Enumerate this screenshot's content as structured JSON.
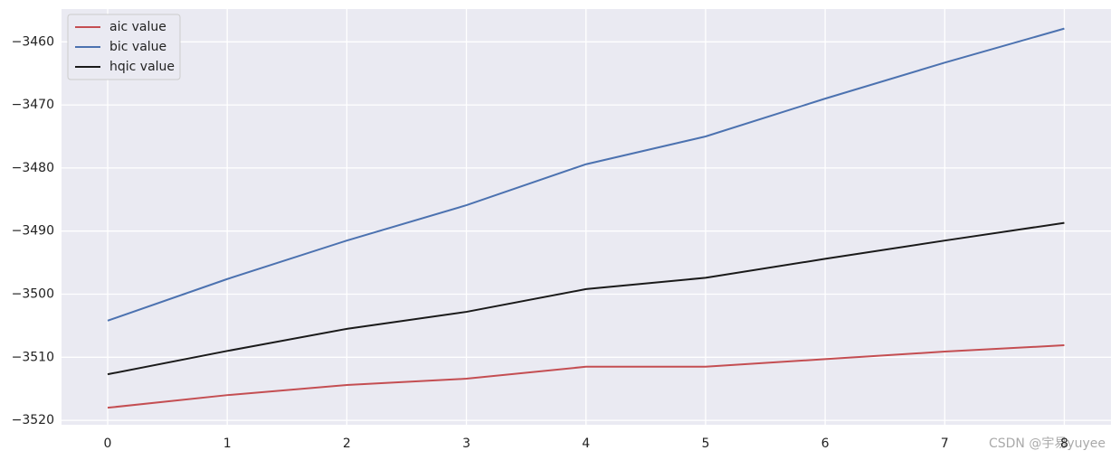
{
  "chart_data": {
    "type": "line",
    "x": [
      0,
      1,
      2,
      3,
      4,
      5,
      6,
      7,
      8
    ],
    "series": [
      {
        "name": "aic value",
        "color": "#c44e52",
        "values": [
          -3518.0,
          -3516.0,
          -3514.4,
          -3513.4,
          -3511.5,
          -3511.5,
          -3510.3,
          -3509.1,
          -3508.1
        ]
      },
      {
        "name": "bic value",
        "color": "#4c72b0",
        "values": [
          -3504.2,
          -3497.6,
          -3491.5,
          -3485.9,
          -3479.4,
          -3475.0,
          -3469.0,
          -3463.3,
          -3457.9
        ]
      },
      {
        "name": "hqic value",
        "color": "#1a1a1a",
        "values": [
          -3512.7,
          -3509.0,
          -3505.5,
          -3502.8,
          -3499.2,
          -3497.4,
          -3494.4,
          -3491.5,
          -3488.7
        ]
      }
    ],
    "xlim": [
      -0.386,
      8.39
    ],
    "xticks": [
      0,
      1,
      2,
      3,
      4,
      5,
      6,
      7,
      8
    ],
    "ylim": [
      -3520.7,
      -3454.8
    ],
    "yticks": [
      {
        "value": -3520,
        "label": "−3520"
      },
      {
        "value": -3510,
        "label": "−3510"
      },
      {
        "value": -3500,
        "label": "−3500"
      },
      {
        "value": -3490,
        "label": "−3490"
      },
      {
        "value": -3480,
        "label": "−3480"
      },
      {
        "value": -3470,
        "label": "−3470"
      },
      {
        "value": -3460,
        "label": "−3460"
      }
    ],
    "grid": true,
    "legend": "upper left",
    "background": "#eaeaf2",
    "watermark": "CSDN @宇易yuyee"
  }
}
